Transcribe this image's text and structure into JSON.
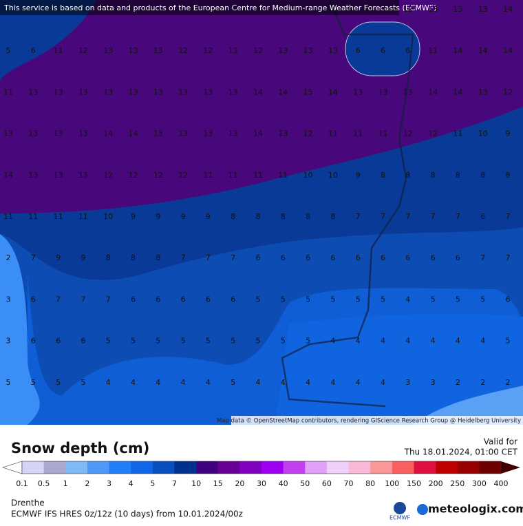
{
  "map": {
    "banner": "This service is based on data and products of the European Centre for Medium-range Weather Forecasts (ECMWF)",
    "attribution": "Map data © OpenStreetMap contributors, rendering GIScience Research Group @ Heidelberg University",
    "grid": [
      [
        null,
        null,
        null,
        null,
        null,
        null,
        null,
        null,
        null,
        null,
        null,
        null,
        null,
        null,
        null,
        null,
        12,
        13,
        13,
        13,
        14
      ],
      [
        5,
        6,
        11,
        12,
        13,
        13,
        13,
        12,
        12,
        13,
        12,
        13,
        13,
        13,
        6,
        6,
        6,
        11,
        14,
        14,
        14
      ],
      [
        11,
        13,
        13,
        13,
        13,
        13,
        13,
        13,
        13,
        13,
        14,
        14,
        15,
        14,
        13,
        13,
        13,
        14,
        14,
        13,
        12
      ],
      [
        13,
        13,
        13,
        13,
        14,
        14,
        13,
        13,
        13,
        13,
        14,
        13,
        12,
        11,
        11,
        11,
        12,
        12,
        11,
        10,
        9
      ],
      [
        14,
        13,
        13,
        13,
        12,
        12,
        12,
        12,
        11,
        11,
        11,
        11,
        10,
        10,
        9,
        8,
        8,
        8,
        8,
        8,
        8
      ],
      [
        11,
        11,
        11,
        11,
        10,
        9,
        9,
        9,
        9,
        8,
        8,
        8,
        8,
        8,
        7,
        7,
        7,
        7,
        7,
        6,
        7
      ],
      [
        2,
        7,
        9,
        9,
        8,
        8,
        8,
        7,
        7,
        7,
        6,
        6,
        6,
        6,
        6,
        6,
        6,
        6,
        6,
        7,
        7
      ],
      [
        3,
        6,
        7,
        7,
        7,
        6,
        6,
        6,
        6,
        6,
        5,
        5,
        5,
        5,
        5,
        5,
        4,
        5,
        5,
        5,
        6
      ],
      [
        3,
        6,
        6,
        6,
        5,
        5,
        5,
        5,
        5,
        5,
        5,
        5,
        5,
        4,
        4,
        4,
        4,
        4,
        4,
        4,
        5
      ],
      [
        5,
        5,
        5,
        5,
        4,
        4,
        4,
        4,
        4,
        5,
        4,
        4,
        4,
        4,
        4,
        4,
        3,
        3,
        2,
        2,
        2
      ]
    ]
  },
  "legend": {
    "title": "Snow depth (cm)",
    "valid_label": "Valid for",
    "valid_time": "Thu 18.01.2024, 01:00 CET",
    "ticks": [
      0.1,
      0.5,
      1,
      2,
      3,
      4,
      5,
      7,
      10,
      15,
      20,
      30,
      40,
      50,
      60,
      70,
      80,
      100,
      150,
      200,
      250,
      300,
      400
    ],
    "colors": [
      "#d4d4f8",
      "#a8a8d0",
      "#80b8f8",
      "#5098f8",
      "#2080f8",
      "#1068e8",
      "#0850c0",
      "#003090",
      "#400080",
      "#680098",
      "#8000c0",
      "#a000f0",
      "#c040f0",
      "#e0a0f8",
      "#f0d0f8",
      "#f8b8d8",
      "#f89898",
      "#f86060",
      "#e01040",
      "#c00000",
      "#980000",
      "#700000"
    ]
  },
  "footer": {
    "region": "Drenthe",
    "model": "ECMWF IFS HRES 0z/12z (10 days) from 10.01.2024/00z",
    "ecmwf_logo": "ECMWF",
    "brand": "meteologix.com"
  }
}
